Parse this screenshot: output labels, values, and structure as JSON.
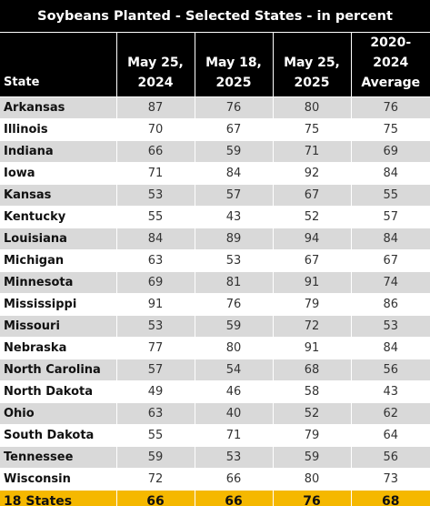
{
  "header": {
    "title": "Soybeans Planted - Selected States - in percent"
  },
  "table": {
    "columns": [
      "State",
      "May 25, 2024",
      "May 18, 2025",
      "May 25, 2025",
      "2020-2024 Average"
    ],
    "rows": [
      [
        "Arkansas",
        87,
        76,
        80,
        76
      ],
      [
        "Illinois",
        70,
        67,
        75,
        75
      ],
      [
        "Indiana",
        66,
        59,
        71,
        69
      ],
      [
        "Iowa",
        71,
        84,
        92,
        84
      ],
      [
        "Kansas",
        53,
        57,
        67,
        55
      ],
      [
        "Kentucky",
        55,
        43,
        52,
        57
      ],
      [
        "Louisiana",
        84,
        89,
        94,
        84
      ],
      [
        "Michigan",
        63,
        53,
        67,
        67
      ],
      [
        "Minnesota",
        69,
        81,
        91,
        74
      ],
      [
        "Mississippi",
        91,
        76,
        79,
        86
      ],
      [
        "Missouri",
        53,
        59,
        72,
        53
      ],
      [
        "Nebraska",
        77,
        80,
        91,
        84
      ],
      [
        "North Carolina",
        57,
        54,
        68,
        56
      ],
      [
        "North Dakota",
        49,
        46,
        58,
        43
      ],
      [
        "Ohio",
        63,
        40,
        52,
        62
      ],
      [
        "South Dakota",
        55,
        71,
        79,
        64
      ],
      [
        "Tennessee",
        59,
        53,
        59,
        56
      ],
      [
        "Wisconsin",
        72,
        66,
        80,
        73
      ]
    ],
    "total": [
      "18 States",
      66,
      66,
      76,
      68
    ]
  }
}
